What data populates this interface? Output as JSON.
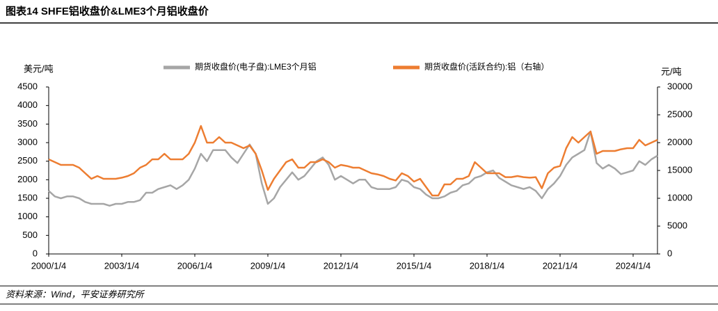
{
  "chart_data": {
    "type": "line",
    "title": "图表14 SHFE铝收盘价&LME3个月铝收盘价",
    "source": "资料来源：Wind，平安证券研究所",
    "y_label": "美元/吨",
    "y2_label": "元/吨",
    "x": [
      "2000/1/4",
      "2000/4/4",
      "2000/7/4",
      "2000/10/4",
      "2001/1/4",
      "2001/4/4",
      "2001/7/4",
      "2001/10/4",
      "2002/1/4",
      "2002/4/4",
      "2002/7/4",
      "2002/10/4",
      "2003/1/4",
      "2003/4/4",
      "2003/7/4",
      "2003/10/4",
      "2004/1/4",
      "2004/4/4",
      "2004/7/4",
      "2004/10/4",
      "2005/1/4",
      "2005/4/4",
      "2005/7/4",
      "2005/10/4",
      "2006/1/4",
      "2006/4/4",
      "2006/7/4",
      "2006/10/4",
      "2007/1/4",
      "2007/4/4",
      "2007/7/4",
      "2007/10/4",
      "2008/1/4",
      "2008/4/4",
      "2008/7/4",
      "2008/10/4",
      "2009/1/4",
      "2009/4/4",
      "2009/7/4",
      "2009/10/4",
      "2010/1/4",
      "2010/4/4",
      "2010/7/4",
      "2010/10/4",
      "2011/1/4",
      "2011/4/4",
      "2011/7/4",
      "2011/10/4",
      "2012/1/4",
      "2012/4/4",
      "2012/7/4",
      "2012/10/4",
      "2013/1/4",
      "2013/4/4",
      "2013/7/4",
      "2013/10/4",
      "2014/1/4",
      "2014/4/4",
      "2014/7/4",
      "2014/10/4",
      "2015/1/4",
      "2015/4/4",
      "2015/7/4",
      "2015/10/4",
      "2016/1/4",
      "2016/4/4",
      "2016/7/4",
      "2016/10/4",
      "2017/1/4",
      "2017/4/4",
      "2017/7/4",
      "2017/10/4",
      "2018/1/4",
      "2018/4/4",
      "2018/7/4",
      "2018/10/4",
      "2019/1/4",
      "2019/4/4",
      "2019/7/4",
      "2019/10/4",
      "2020/1/4",
      "2020/4/4",
      "2020/7/4",
      "2020/10/4",
      "2021/1/4",
      "2021/4/4",
      "2021/7/4",
      "2021/10/4",
      "2022/1/4",
      "2022/4/4",
      "2022/7/4",
      "2022/10/4",
      "2023/1/4",
      "2023/4/4",
      "2023/7/4",
      "2023/10/4",
      "2024/1/4",
      "2024/4/4",
      "2024/7/4",
      "2024/10/4",
      "2025/1/4"
    ],
    "series": [
      {
        "name": "期货收盘价(电子盘):LME3个月铝",
        "color": "#a6a6a6",
        "values": [
          1700,
          1550,
          1500,
          1550,
          1550,
          1500,
          1400,
          1350,
          1350,
          1350,
          1300,
          1350,
          1350,
          1400,
          1400,
          1450,
          1650,
          1650,
          1750,
          1800,
          1850,
          1750,
          1850,
          2000,
          2300,
          2700,
          2500,
          2800,
          2800,
          2800,
          2600,
          2450,
          2700,
          2950,
          2700,
          1900,
          1350,
          1500,
          1800,
          2000,
          2200,
          2000,
          2100,
          2300,
          2500,
          2600,
          2400,
          2000,
          2100,
          2000,
          1900,
          2000,
          2000,
          1800,
          1750,
          1750,
          1750,
          1800,
          2000,
          1950,
          1800,
          1750,
          1600,
          1500,
          1500,
          1550,
          1650,
          1700,
          1850,
          1900,
          2050,
          2100,
          2200,
          2250,
          2050,
          1950,
          1850,
          1800,
          1750,
          1800,
          1700,
          1500,
          1750,
          1900,
          2100,
          2400,
          2600,
          2700,
          2800,
          3300,
          2450,
          2300,
          2400,
          2300,
          2150,
          2200,
          2250,
          2500,
          2400,
          2550,
          2650
        ]
      },
      {
        "name": "期货收盘价(活跃合约):铝（右轴）",
        "color": "#ed7d31",
        "axis": "y2",
        "values": [
          17000,
          16500,
          16000,
          16000,
          16000,
          15500,
          14500,
          13500,
          14000,
          13500,
          13500,
          13500,
          13700,
          14000,
          14500,
          15500,
          16000,
          17000,
          17000,
          18000,
          17000,
          17000,
          17000,
          18000,
          20000,
          23000,
          20000,
          20000,
          21000,
          20000,
          20000,
          19500,
          19000,
          19500,
          18000,
          15000,
          11500,
          13500,
          15000,
          16500,
          17000,
          15500,
          15500,
          16500,
          16500,
          17000,
          16500,
          15500,
          16000,
          15800,
          15500,
          15500,
          15000,
          14500,
          14300,
          14000,
          13500,
          13200,
          14500,
          14000,
          13000,
          13500,
          12000,
          10500,
          10500,
          12500,
          12500,
          13500,
          13500,
          14000,
          16500,
          15500,
          14500,
          14500,
          14500,
          13800,
          13800,
          14000,
          13800,
          13700,
          13800,
          11800,
          14500,
          15500,
          15800,
          19000,
          21000,
          20000,
          21000,
          22000,
          18000,
          18500,
          18500,
          18500,
          18800,
          19000,
          19000,
          20500,
          19500,
          20000,
          20500
        ]
      }
    ],
    "xlim": [
      "2000/1/4",
      "2025/1/4"
    ],
    "xticks": [
      "2000/1/4",
      "2003/1/4",
      "2006/1/4",
      "2009/1/4",
      "2012/1/4",
      "2015/1/4",
      "2018/1/4",
      "2021/1/4",
      "2024/1/4"
    ],
    "ylim": [
      0,
      4500
    ],
    "yticks": [
      0,
      500,
      1000,
      1500,
      2000,
      2500,
      3000,
      3500,
      4000,
      4500
    ],
    "y2lim": [
      0,
      30000
    ],
    "y2ticks": [
      0,
      5000,
      10000,
      15000,
      20000,
      25000,
      30000
    ]
  }
}
